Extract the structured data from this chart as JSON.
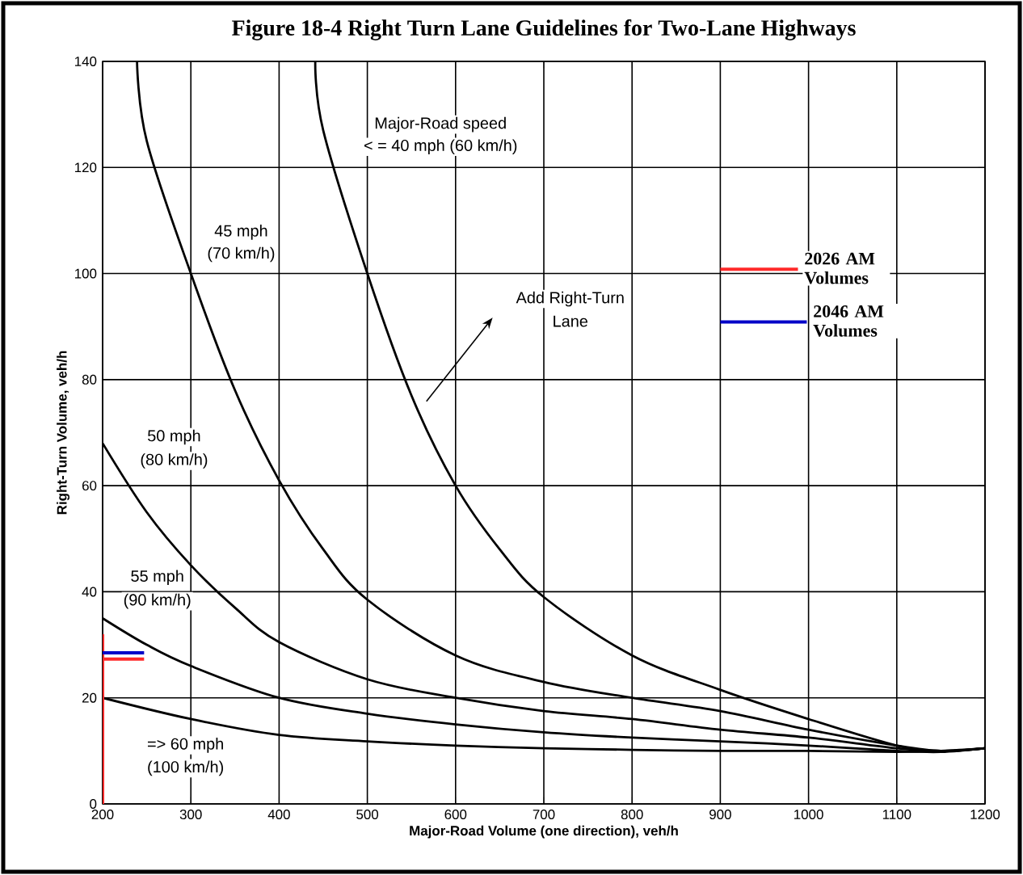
{
  "chart_data": {
    "type": "line",
    "title": "Figure 18-4 Right Turn Lane Guidelines for Two-Lane Highways",
    "xlabel": "Major-Road Volume (one direction), veh/h",
    "ylabel": "Right-Turn Volume, veh/h",
    "xlim": [
      200,
      1200
    ],
    "ylim": [
      0,
      140
    ],
    "xticks": [
      200,
      300,
      400,
      500,
      600,
      700,
      800,
      900,
      1000,
      1100,
      1200
    ],
    "yticks": [
      0,
      20,
      40,
      60,
      80,
      100,
      120,
      140
    ],
    "grid": true,
    "legend": "right",
    "series": [
      {
        "color": "#000000",
        "x": [
          441,
          450,
          500,
          550,
          600,
          650,
          700,
          800,
          900,
          1000,
          1100,
          1150,
          1200
        ],
        "values": [
          140,
          127,
          100,
          77,
          60,
          48,
          39,
          28,
          21.5,
          16,
          11,
          10,
          10.5
        ]
      },
      {
        "color": "#000000",
        "x": [
          239,
          250,
          300,
          350,
          400,
          450,
          500,
          600,
          700,
          800,
          900,
          1000,
          1100,
          1150,
          1200
        ],
        "values": [
          140,
          125,
          100,
          78,
          61,
          48,
          38.5,
          28,
          23,
          20,
          17.5,
          14,
          11,
          10,
          10.5
        ]
      },
      {
        "color": "#000000",
        "x": [
          200,
          250,
          300,
          350,
          400,
          500,
          600,
          700,
          800,
          900,
          1000,
          1100,
          1150,
          1200
        ],
        "values": [
          68,
          55,
          45,
          37,
          30.5,
          23.5,
          20,
          17.5,
          16,
          14,
          12.5,
          10.5,
          10,
          10.5
        ]
      },
      {
        "color": "#000000",
        "x": [
          200,
          250,
          300,
          400,
          500,
          600,
          700,
          800,
          900,
          1000,
          1100,
          1150,
          1200
        ],
        "values": [
          35,
          30,
          26,
          20,
          17,
          15,
          13.5,
          12.5,
          11.8,
          11,
          10,
          9.8,
          10.5
        ]
      },
      {
        "color": "#000000",
        "x": [
          200,
          300,
          400,
          500,
          600,
          700,
          800,
          900,
          1000,
          1100,
          1150,
          1200
        ],
        "values": [
          20,
          16,
          13,
          11.8,
          11,
          10.5,
          10.2,
          10,
          10,
          9.8,
          10,
          10.5
        ]
      },
      {
        "color": "#ff2a2a",
        "x": [
          200,
          200
        ],
        "values": [
          0,
          32
        ]
      },
      {
        "name": "2026 AM Volumes",
        "color": "#ff2a2a",
        "x": [
          200,
          247
        ],
        "values": [
          27.3,
          27.3
        ]
      },
      {
        "name": "2046 AM Volumes",
        "color": "#0000c8",
        "x": [
          200,
          247
        ],
        "values": [
          28.5,
          28.5
        ]
      }
    ],
    "annotations": [
      "Major-Road speed",
      "< = 40 mph (60 km/h)",
      "45 mph",
      "(70 km/h)",
      "Add Right-Turn",
      "Lane",
      "50 mph",
      "(80 km/h)",
      "55 mph",
      "(90 km/h)",
      "=> 60 mph",
      "(100 km/h)"
    ]
  }
}
